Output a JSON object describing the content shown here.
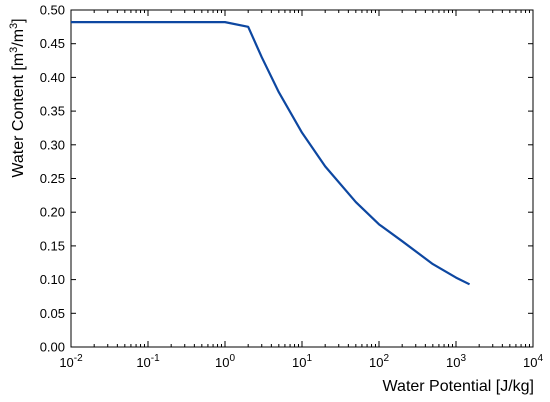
{
  "chart_data": {
    "type": "line",
    "title": "",
    "xlabel": "Water Potential [J/kg]",
    "ylabel": {
      "prefix": "Water Content [m",
      "sup1": "3",
      "mid": "/m",
      "sup2": "3",
      "suffix": "]"
    },
    "x_scale": "log",
    "xlim": [
      0.01,
      10000
    ],
    "ylim": [
      0.0,
      0.5
    ],
    "grid": false,
    "x_ticks": [
      {
        "value": 0.01,
        "base": "10",
        "exp": "-2"
      },
      {
        "value": 0.1,
        "base": "10",
        "exp": "-1"
      },
      {
        "value": 1,
        "base": "10",
        "exp": "0"
      },
      {
        "value": 10,
        "base": "10",
        "exp": "1"
      },
      {
        "value": 100,
        "base": "10",
        "exp": "2"
      },
      {
        "value": 1000,
        "base": "10",
        "exp": "3"
      },
      {
        "value": 10000,
        "base": "10",
        "exp": "4"
      }
    ],
    "y_ticks": [
      "0.00",
      "0.05",
      "0.10",
      "0.15",
      "0.20",
      "0.25",
      "0.30",
      "0.35",
      "0.40",
      "0.45",
      "0.50"
    ],
    "series": [
      {
        "color": "#0d47a1",
        "x": [
          0.01,
          0.1,
          1,
          2,
          3,
          5,
          10,
          20,
          50,
          100,
          200,
          500,
          1000,
          1500
        ],
        "y": [
          0.482,
          0.482,
          0.482,
          0.475,
          0.43,
          0.378,
          0.318,
          0.268,
          0.215,
          0.182,
          0.157,
          0.123,
          0.103,
          0.093
        ]
      }
    ]
  }
}
